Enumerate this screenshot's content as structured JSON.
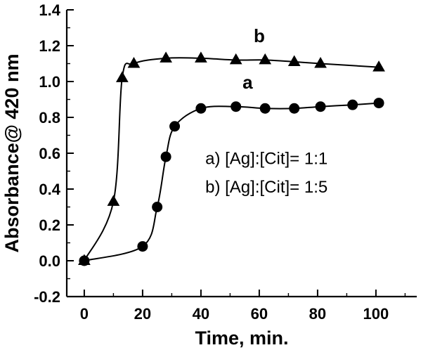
{
  "figure": {
    "description": "Absorbance at 420 nm versus time for silver-citrate ratios"
  },
  "chart_data": {
    "type": "line",
    "title": "",
    "xlabel": "Time, min.",
    "ylabel": "Absorbance@ 420 nm",
    "xlim": [
      -6,
      114
    ],
    "ylim": [
      -0.2,
      1.4
    ],
    "grid": false,
    "legend_position": "none",
    "xticks": [
      {
        "v": 0,
        "label": "0"
      },
      {
        "v": 20,
        "label": "20"
      },
      {
        "v": 40,
        "label": "40"
      },
      {
        "v": 60,
        "label": "60"
      },
      {
        "v": 80,
        "label": "80"
      },
      {
        "v": 100,
        "label": "100"
      }
    ],
    "yticks": [
      {
        "v": -0.2,
        "label": "-0.2"
      },
      {
        "v": 0.0,
        "label": "0.0"
      },
      {
        "v": 0.2,
        "label": "0.2"
      },
      {
        "v": 0.4,
        "label": "0.4"
      },
      {
        "v": 0.6,
        "label": "0.6"
      },
      {
        "v": 0.8,
        "label": "0.8"
      },
      {
        "v": 1.0,
        "label": "1.0"
      },
      {
        "v": 1.2,
        "label": "1.2"
      },
      {
        "v": 1.4,
        "label": "1.4"
      }
    ],
    "x_minor_step": 10,
    "y_minor_step": 0.1,
    "series": [
      {
        "name": "b",
        "marker": "triangle",
        "color": "#000000",
        "label": "b",
        "label_pos": {
          "x": 60,
          "y": 1.22
        },
        "x": [
          0,
          10,
          13,
          17,
          28,
          40,
          52,
          62,
          72,
          81,
          101
        ],
        "y": [
          0.0,
          0.33,
          1.02,
          1.1,
          1.13,
          1.13,
          1.12,
          1.12,
          1.11,
          1.1,
          1.08
        ]
      },
      {
        "name": "a",
        "marker": "circle",
        "color": "#000000",
        "label": "a",
        "label_pos": {
          "x": 56,
          "y": 0.96
        },
        "x": [
          0,
          20,
          25,
          28,
          31,
          40,
          52,
          62,
          72,
          81,
          92,
          101
        ],
        "y": [
          0.0,
          0.08,
          0.3,
          0.58,
          0.75,
          0.85,
          0.86,
          0.85,
          0.85,
          0.86,
          0.87,
          0.88
        ]
      }
    ],
    "annotations": [
      {
        "text": "a) [Ag]:[Cit]= 1:1",
        "x": 41.5,
        "y": 0.54
      },
      {
        "text": "b) [Ag]:[Cit]= 1:5",
        "x": 41.5,
        "y": 0.38
      }
    ]
  }
}
